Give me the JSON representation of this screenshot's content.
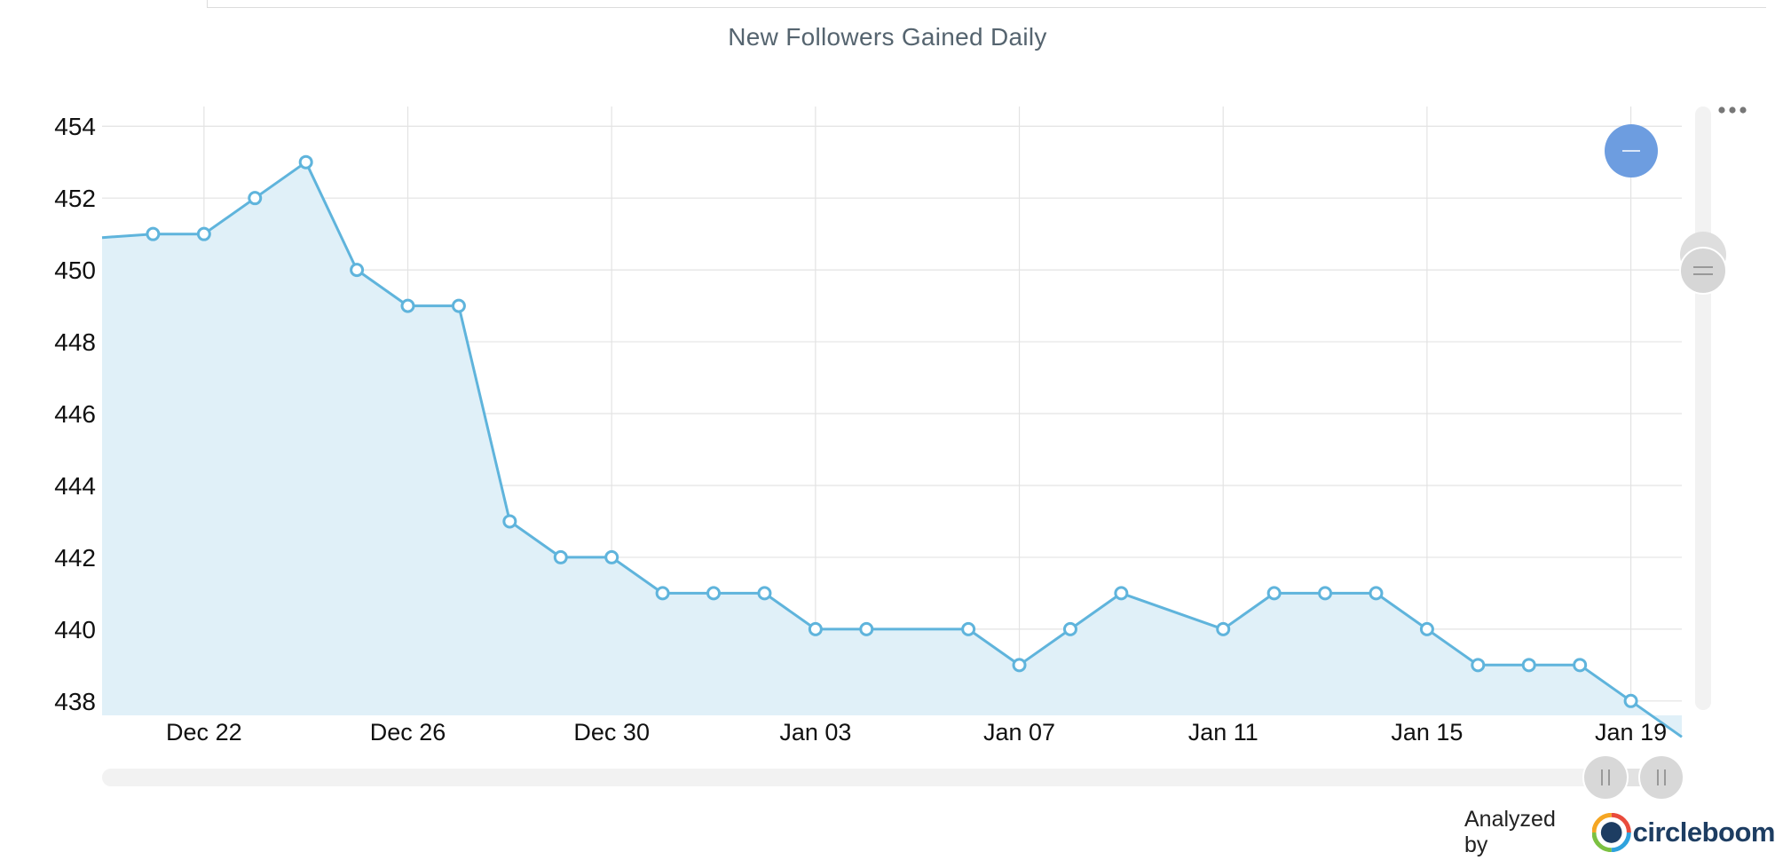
{
  "chart_data": {
    "type": "area",
    "title": "New Followers Gained Daily",
    "xlabel": "",
    "ylabel": "",
    "ylim": [
      437.6,
      454.5
    ],
    "xlim": [
      "2024-12-20",
      "2025-01-20"
    ],
    "yticks": [
      454,
      452,
      450,
      448,
      446,
      444,
      442,
      440,
      438
    ],
    "xtick_labels": [
      "Dec 22",
      "Dec 26",
      "Dec 30",
      "Jan 03",
      "Jan 07",
      "Jan 11",
      "Jan 15",
      "Jan 19"
    ],
    "xtick_dates": [
      "2024-12-22",
      "2024-12-26",
      "2024-12-30",
      "2025-01-03",
      "2025-01-07",
      "2025-01-11",
      "2025-01-15",
      "2025-01-19"
    ],
    "grid": true,
    "legend": "none",
    "series": [
      {
        "color": "#5fb4dc",
        "fill": "#e0f0f8",
        "points": [
          {
            "x": "2024-12-21",
            "y": 451
          },
          {
            "x": "2024-12-22",
            "y": 451
          },
          {
            "x": "2024-12-23",
            "y": 452
          },
          {
            "x": "2024-12-24",
            "y": 453
          },
          {
            "x": "2024-12-25",
            "y": 450
          },
          {
            "x": "2024-12-26",
            "y": 449
          },
          {
            "x": "2024-12-27",
            "y": 449
          },
          {
            "x": "2024-12-28",
            "y": 443
          },
          {
            "x": "2024-12-29",
            "y": 442
          },
          {
            "x": "2024-12-30",
            "y": 442
          },
          {
            "x": "2024-12-31",
            "y": 441
          },
          {
            "x": "2025-01-01",
            "y": 441
          },
          {
            "x": "2025-01-02",
            "y": 441
          },
          {
            "x": "2025-01-03",
            "y": 440
          },
          {
            "x": "2025-01-04",
            "y": 440
          },
          {
            "x": "2025-01-06",
            "y": 440
          },
          {
            "x": "2025-01-07",
            "y": 439
          },
          {
            "x": "2025-01-08",
            "y": 440
          },
          {
            "x": "2025-01-09",
            "y": 441
          },
          {
            "x": "2025-01-11",
            "y": 440
          },
          {
            "x": "2025-01-12",
            "y": 441
          },
          {
            "x": "2025-01-13",
            "y": 441
          },
          {
            "x": "2025-01-14",
            "y": 441
          },
          {
            "x": "2025-01-15",
            "y": 440
          },
          {
            "x": "2025-01-16",
            "y": 439
          },
          {
            "x": "2025-01-17",
            "y": 439
          },
          {
            "x": "2025-01-18",
            "y": 439
          },
          {
            "x": "2025-01-19",
            "y": 438
          }
        ]
      }
    ]
  },
  "menu_icon": "more-horizontal-icon",
  "reset_icon": "minus-icon",
  "footer": {
    "label": "Analyzed by",
    "brand": "circleboom"
  }
}
